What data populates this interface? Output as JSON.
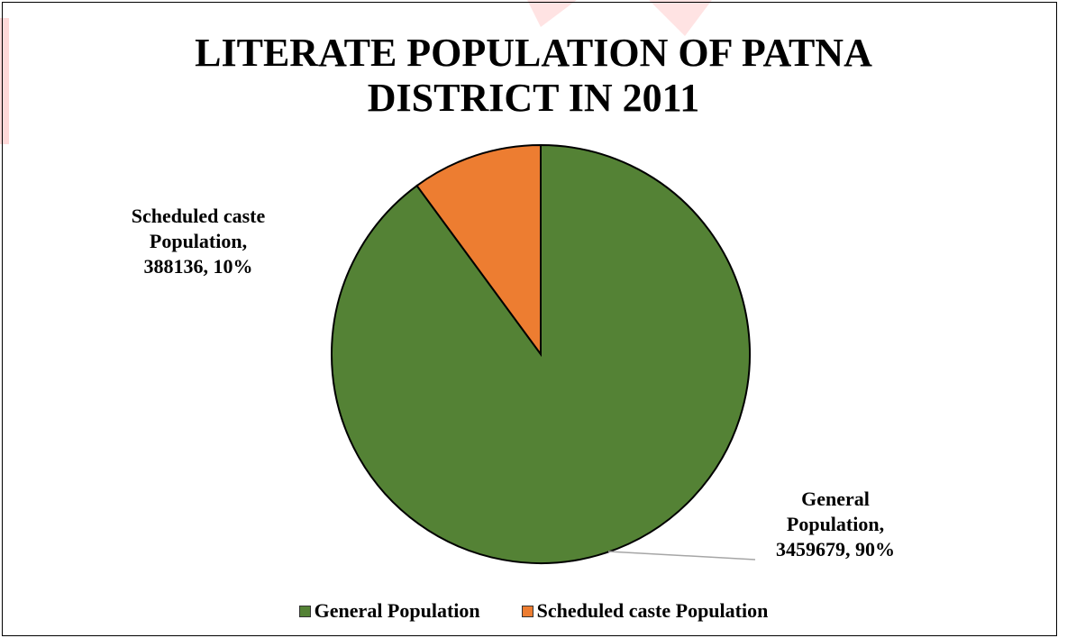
{
  "chart_data": {
    "type": "pie",
    "title_lines": [
      "LITERATE POPULATION OF PATNA",
      "DISTRICT IN 2011"
    ],
    "slices": [
      {
        "name": "General Population",
        "value": 3459679,
        "percent": "90%",
        "color": "#548235",
        "label_lines": [
          "General",
          "Population,",
          "3459679, 90%"
        ]
      },
      {
        "name": "Scheduled caste Population",
        "value": 388136,
        "percent": "10%",
        "color": "#ED7D31",
        "label_lines": [
          "Scheduled caste",
          "Population,",
          "388136, 10%"
        ]
      }
    ],
    "legend_position": "bottom"
  }
}
